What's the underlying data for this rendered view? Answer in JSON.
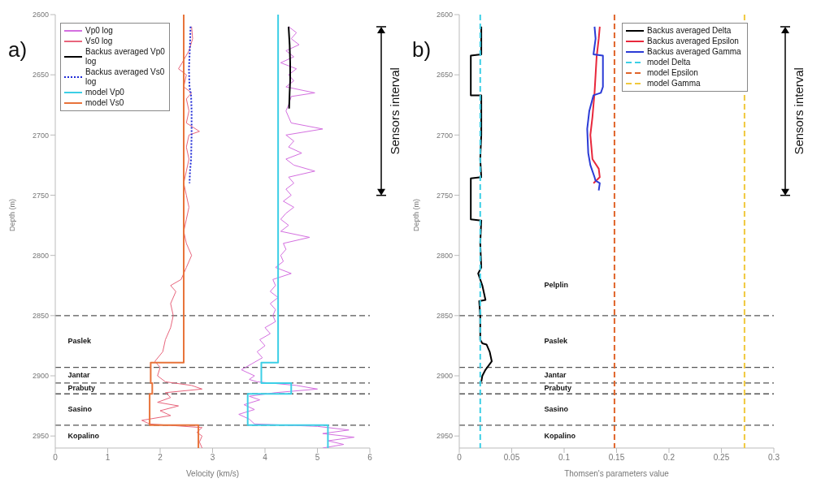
{
  "chart_data": [
    {
      "type": "line",
      "title": "a)",
      "xlabel": "Velocity (km/s)",
      "ylabel": "Depth (m)",
      "xlim": [
        0,
        6
      ],
      "xticks": [
        0,
        1,
        2,
        3,
        4,
        5,
        6
      ],
      "ylim": [
        2960,
        2600
      ],
      "yticks": [
        2600,
        2650,
        2700,
        2750,
        2800,
        2850,
        2900,
        2950
      ],
      "legend": "top left",
      "grid": false,
      "series": [
        {
          "name": "Vp0 log",
          "color": "#d46fe0",
          "line_style": "solid",
          "x": [
            4.45,
            4.6,
            4.5,
            4.65,
            4.4,
            4.55,
            4.3,
            4.6,
            4.45,
            4.55,
            4.4,
            4.95,
            4.5,
            4.45,
            4.4,
            4.5,
            5.1,
            4.4,
            4.55,
            4.45,
            4.7,
            4.4,
            4.55,
            4.95,
            4.45,
            4.55,
            4.4,
            4.5,
            4.35,
            4.55,
            4.4,
            4.3,
            4.45,
            4.3,
            4.85,
            4.35,
            4.4,
            4.3,
            4.35,
            4.2,
            4.5,
            4.15,
            4.2,
            4.1,
            4.25,
            4.1,
            4.2,
            4.15,
            4.2,
            4.0,
            4.1,
            3.9,
            4.0,
            3.85,
            3.95,
            3.75,
            3.55,
            3.8,
            3.7,
            3.85,
            4.6,
            5.0,
            4.2,
            3.7,
            3.9,
            3.6,
            3.8,
            3.5,
            3.7,
            3.8,
            5.0,
            5.6,
            5.1,
            5.7,
            5.2,
            5.5,
            5.1
          ],
          "values": [
            2610,
            2615,
            2620,
            2625,
            2630,
            2635,
            2640,
            2645,
            2650,
            2655,
            2660,
            2665,
            2668,
            2675,
            2680,
            2690,
            2695,
            2700,
            2705,
            2710,
            2715,
            2720,
            2725,
            2730,
            2735,
            2740,
            2745,
            2750,
            2755,
            2760,
            2765,
            2770,
            2775,
            2780,
            2785,
            2790,
            2795,
            2800,
            2805,
            2810,
            2815,
            2820,
            2825,
            2830,
            2835,
            2840,
            2845,
            2850,
            2855,
            2860,
            2865,
            2870,
            2875,
            2880,
            2885,
            2890,
            2895,
            2900,
            2903,
            2905,
            2908,
            2911,
            2914,
            2917,
            2920,
            2924,
            2928,
            2932,
            2936,
            2940,
            2942,
            2945,
            2948,
            2951,
            2954,
            2957,
            2960
          ]
        },
        {
          "name": "Vs0 log",
          "color": "#e8657c",
          "line_style": "solid",
          "x": [
            2.6,
            2.62,
            2.55,
            2.42,
            2.35,
            2.5,
            2.45,
            2.6,
            2.5,
            2.55,
            2.5,
            2.75,
            2.55,
            2.5,
            2.55,
            2.5,
            2.45,
            2.5,
            2.55,
            2.5,
            2.45,
            2.5,
            2.6,
            2.5,
            2.4,
            2.2,
            2.3,
            2.2,
            2.25,
            2.2,
            2.1,
            2.05,
            1.9,
            2.0,
            1.95,
            2.1,
            2.6,
            2.8,
            2.1,
            2.2,
            1.95,
            2.35,
            2.0,
            2.2,
            1.65,
            1.8,
            2.8,
            2.7,
            2.8,
            2.75,
            2.8
          ],
          "values": [
            2610,
            2620,
            2630,
            2640,
            2645,
            2650,
            2660,
            2665,
            2670,
            2680,
            2690,
            2697,
            2700,
            2710,
            2720,
            2730,
            2740,
            2750,
            2760,
            2770,
            2780,
            2790,
            2800,
            2810,
            2820,
            2825,
            2830,
            2840,
            2850,
            2860,
            2870,
            2880,
            2888,
            2893,
            2900,
            2905,
            2908,
            2911,
            2914,
            2918,
            2922,
            2925,
            2929,
            2933,
            2937,
            2940,
            2943,
            2947,
            2950,
            2955,
            2960
          ]
        },
        {
          "name": "Backus averaged Vp0 log",
          "color": "#000000",
          "line_style": "solid",
          "x": [
            4.45,
            4.47,
            4.48,
            4.48,
            4.47,
            4.46
          ],
          "values": [
            2610,
            2625,
            2640,
            2655,
            2665,
            2678
          ]
        },
        {
          "name": "Backus averaged Vs0 log",
          "color": "#1f2ad6",
          "line_style": "dotted",
          "x": [
            2.58,
            2.57,
            2.56,
            2.55,
            2.56,
            2.59,
            2.6,
            2.6,
            2.59,
            2.57,
            2.56
          ],
          "values": [
            2610,
            2625,
            2635,
            2645,
            2660,
            2667,
            2680,
            2700,
            2720,
            2730,
            2740
          ]
        },
        {
          "name": "model Vp0",
          "color": "#3ccfe6",
          "line_style": "solid",
          "x": [
            4.25,
            4.25,
            3.93,
            3.93,
            4.5,
            4.5,
            3.67,
            3.67,
            5.2,
            5.2
          ],
          "values": [
            2600,
            2889,
            2889,
            2906,
            2906,
            2915,
            2915,
            2941,
            2941,
            2960
          ]
        },
        {
          "name": "model Vs0",
          "color": "#e8733a",
          "line_style": "solid",
          "x": [
            2.45,
            2.45,
            1.82,
            1.82,
            1.85,
            1.85,
            1.8,
            1.8,
            2.73,
            2.73
          ],
          "values": [
            2600,
            2889,
            2889,
            2906,
            2906,
            2915,
            2915,
            2941,
            2941,
            2960
          ]
        }
      ],
      "ref_lines": [
        {
          "axis": "y",
          "value": 2850,
          "color": "#555555",
          "line_style": "dashed"
        },
        {
          "axis": "y",
          "value": 2893,
          "color": "#555555",
          "line_style": "dashed"
        },
        {
          "axis": "y",
          "value": 2906,
          "color": "#555555",
          "line_style": "dashed"
        },
        {
          "axis": "y",
          "value": 2915,
          "color": "#555555",
          "line_style": "dashed"
        },
        {
          "axis": "y",
          "value": 2941,
          "color": "#555555",
          "line_style": "dashed"
        }
      ],
      "annotations": [
        "Sensors interval",
        "Paslek",
        "Jantar",
        "Prabuty",
        "Sasino",
        "Kopalino"
      ]
    },
    {
      "type": "line",
      "title": "b)",
      "xlabel": "Thomsen's parameters value",
      "ylabel": "Depth (m)",
      "xlim": [
        0,
        0.3
      ],
      "xticks": [
        0,
        0.05,
        0.1,
        0.15,
        0.2,
        0.25,
        0.3
      ],
      "ylim": [
        2960,
        2600
      ],
      "yticks": [
        2600,
        2650,
        2700,
        2750,
        2800,
        2850,
        2900,
        2950
      ],
      "legend": "top right",
      "grid": false,
      "series": [
        {
          "name": "Backus averaged Delta",
          "color": "#000000",
          "line_style": "solid",
          "x": [
            0.021,
            0.021,
            0.011,
            0.011,
            0.021,
            0.021,
            0.02,
            0.021,
            0.011,
            0.011,
            0.021,
            0.02,
            0.021,
            0.018,
            0.022,
            0.025,
            0.019,
            0.02,
            0.02,
            0.022,
            0.026,
            0.029,
            0.031,
            0.025,
            0.022,
            0.021
          ],
          "values": [
            2610,
            2633,
            2634,
            2667,
            2667,
            2700,
            2720,
            2735,
            2736,
            2770,
            2771,
            2790,
            2810,
            2815,
            2825,
            2837,
            2838,
            2850,
            2870,
            2873,
            2874,
            2880,
            2888,
            2895,
            2900,
            2905
          ]
        },
        {
          "name": "Backus averaged Epsilon",
          "color": "#e8283c",
          "line_style": "solid",
          "x": [
            0.134,
            0.133,
            0.131,
            0.13,
            0.129,
            0.128,
            0.127,
            0.125,
            0.126,
            0.127,
            0.133,
            0.134,
            0.128
          ],
          "values": [
            2610,
            2620,
            2635,
            2650,
            2665,
            2675,
            2685,
            2700,
            2710,
            2720,
            2728,
            2735,
            2740
          ]
        },
        {
          "name": "Backus averaged Gamma",
          "color": "#2b3bd6",
          "line_style": "solid",
          "x": [
            0.129,
            0.13,
            0.128,
            0.137,
            0.137,
            0.135,
            0.128,
            0.124,
            0.122,
            0.123,
            0.125,
            0.129,
            0.13,
            0.134,
            0.133
          ],
          "values": [
            2610,
            2620,
            2633,
            2634,
            2660,
            2665,
            2667,
            2680,
            2695,
            2715,
            2725,
            2735,
            2738,
            2740,
            2746
          ]
        },
        {
          "name": "model Delta",
          "color": "#3ccfe6",
          "line_style": "dashed",
          "x": [
            0.02,
            0.02
          ],
          "values": [
            2600,
            2960
          ]
        },
        {
          "name": "model Epsilon",
          "color": "#e0642a",
          "line_style": "dashed",
          "x": [
            0.148,
            0.148
          ],
          "values": [
            2600,
            2960
          ]
        },
        {
          "name": "model Gamma",
          "color": "#f0c83c",
          "line_style": "dashed",
          "x": [
            0.272,
            0.272
          ],
          "values": [
            2600,
            2960
          ]
        }
      ],
      "ref_lines": [
        {
          "axis": "y",
          "value": 2850,
          "color": "#555555",
          "line_style": "dashed"
        },
        {
          "axis": "y",
          "value": 2893,
          "color": "#555555",
          "line_style": "dashed"
        },
        {
          "axis": "y",
          "value": 2906,
          "color": "#555555",
          "line_style": "dashed"
        },
        {
          "axis": "y",
          "value": 2915,
          "color": "#555555",
          "line_style": "dashed"
        },
        {
          "axis": "y",
          "value": 2941,
          "color": "#555555",
          "line_style": "dashed"
        }
      ],
      "annotations": [
        "Sensors interval",
        "Pelplin",
        "Paslek",
        "Jantar",
        "Prabuty",
        "Sasino",
        "Kopalino"
      ]
    }
  ]
}
